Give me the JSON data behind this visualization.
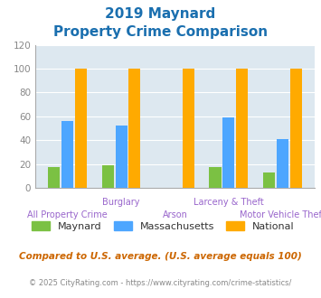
{
  "title_line1": "2019 Maynard",
  "title_line2": "Property Crime Comparison",
  "title_color": "#1a6faf",
  "categories": [
    "All Property Crime",
    "Burglary",
    "Arson",
    "Larceny & Theft",
    "Motor Vehicle Theft"
  ],
  "maynard": [
    17,
    19,
    0,
    17,
    13
  ],
  "massachusetts": [
    56,
    52,
    0,
    59,
    41
  ],
  "national": [
    100,
    100,
    100,
    100,
    100
  ],
  "maynard_color": "#7bc143",
  "massachusetts_color": "#4da6ff",
  "national_color": "#ffaa00",
  "background_color": "#dde8f0",
  "ylim": [
    0,
    120
  ],
  "yticks": [
    0,
    20,
    40,
    60,
    80,
    100,
    120
  ],
  "footnote": "Compared to U.S. average. (U.S. average equals 100)",
  "footnote2": "© 2025 CityRating.com - https://www.cityrating.com/crime-statistics/",
  "footnote_color": "#cc6600",
  "footnote2_color": "#888888",
  "xlabel_color": "#9966cc",
  "tick_color": "#888888",
  "grid_color": "#ffffff",
  "legend_text_color": "#333333",
  "bar_width": 0.22,
  "bar_gap": 0.03
}
